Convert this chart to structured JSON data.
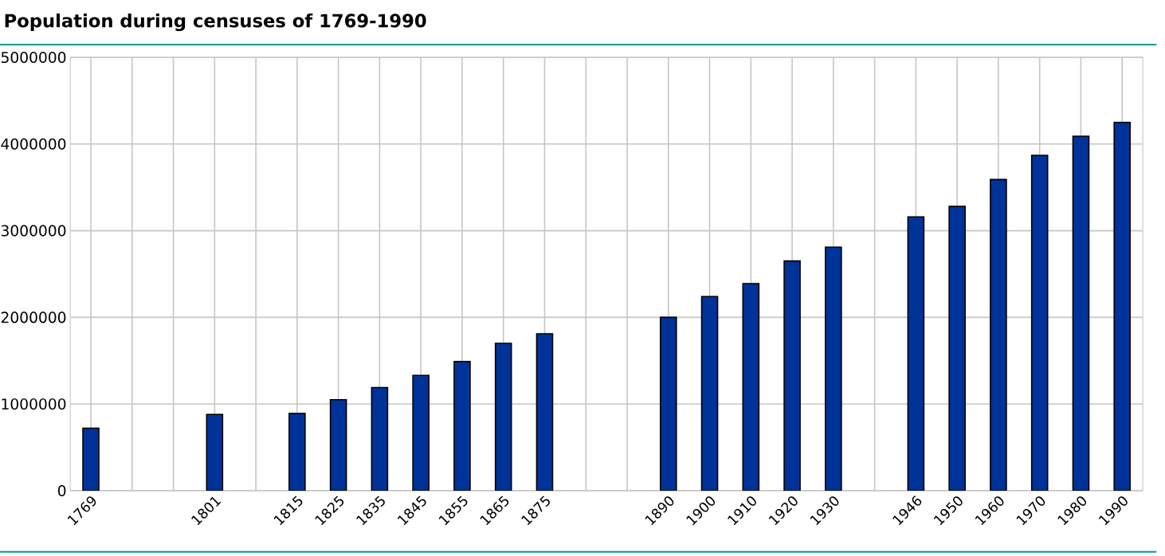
{
  "chart_data": {
    "type": "bar",
    "title": "Population during censuses of 1769-1990",
    "categories": [
      "1769",
      null,
      null,
      "1801",
      null,
      "1815",
      "1825",
      "1835",
      "1845",
      "1855",
      "1865",
      "1875",
      null,
      null,
      "1890",
      "1900",
      "1910",
      "1920",
      "1930",
      null,
      "1946",
      "1950",
      "1960",
      "1970",
      "1980",
      "1990"
    ],
    "values": [
      720000,
      null,
      null,
      880000,
      null,
      890000,
      1050000,
      1190000,
      1330000,
      1490000,
      1700000,
      1810000,
      null,
      null,
      2000000,
      2240000,
      2390000,
      2650000,
      2810000,
      null,
      3160000,
      3280000,
      3590000,
      3870000,
      4090000,
      4250000
    ],
    "color": "#003399",
    "ylim": [
      0,
      5000000
    ],
    "yticks": [
      0,
      1000000,
      2000000,
      3000000,
      4000000,
      5000000
    ],
    "grid": true
  }
}
